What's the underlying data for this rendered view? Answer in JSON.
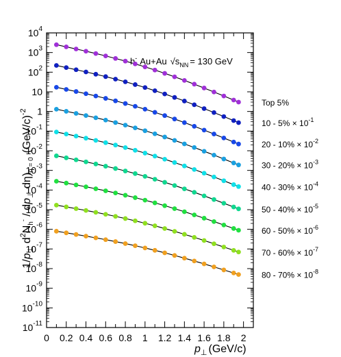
{
  "chart_data": {
    "type": "scatter",
    "annotation": {
      "particle": "h",
      "charge": "-",
      "system": "Au+Au",
      "energy_prefix": "√s",
      "energy_sub": "NN",
      "energy_value": "= 130 GeV"
    },
    "xlabel": {
      "main": "p",
      "sub": "⊥",
      "unit": "(GeV/c)"
    },
    "ylabel": {
      "p1": "1/",
      "p_main": "p",
      "p_sub": "⊥",
      "d2": " d",
      "d2_sup": "2",
      "N": "N",
      "N_sub": "h",
      "N_sup": "-",
      "mid": " / d",
      "dp_main": "p",
      "dp_sub": "⊥",
      "deta": " dη)",
      "eta_sub": "η = 0",
      "unit": "(GeV/c)",
      "unit_sup": "-2"
    },
    "xlim": [
      0,
      2.1
    ],
    "ylog": true,
    "ylim_exp": [
      -11,
      4
    ],
    "x_ticks": [
      "0",
      "0.2",
      "0.4",
      "0.6",
      "0.8",
      "1",
      "1.2",
      "1.4",
      "1.6",
      "1.8",
      "2"
    ],
    "y_ticks": [
      {
        "base": "10",
        "exp": "4"
      },
      {
        "base": "10",
        "exp": "3"
      },
      {
        "base": "10",
        "exp": "2"
      },
      {
        "base": "10",
        "exp": ""
      },
      {
        "base": "1",
        "exp": ""
      },
      {
        "base": "10",
        "exp": "-1"
      },
      {
        "base": "10",
        "exp": "-2"
      },
      {
        "base": "10",
        "exp": "-3"
      },
      {
        "base": "10",
        "exp": "-4"
      },
      {
        "base": "10",
        "exp": "-5"
      },
      {
        "base": "10",
        "exp": "-6"
      },
      {
        "base": "10",
        "exp": "-7"
      },
      {
        "base": "10",
        "exp": "-8"
      },
      {
        "base": "10",
        "exp": "-9"
      },
      {
        "base": "10",
        "exp": "-10"
      },
      {
        "base": "10",
        "exp": "-11"
      }
    ],
    "x": [
      0.1,
      0.2,
      0.3,
      0.4,
      0.5,
      0.6,
      0.7,
      0.8,
      0.9,
      1.0,
      1.1,
      1.2,
      1.3,
      1.4,
      1.5,
      1.6,
      1.7,
      1.8,
      1.9,
      1.95
    ],
    "series": [
      {
        "label": "Top 5%",
        "label_sup": "",
        "color": "#a030d8",
        "start": 2500,
        "end": 3
      },
      {
        "label": "10 - 5% × 10",
        "label_sup": "-1",
        "color": "#1020c0",
        "start": 220,
        "end": 0.27
      },
      {
        "label": "20 - 10% × 10",
        "label_sup": "-2",
        "color": "#1848e8",
        "start": 17,
        "end": 0.022
      },
      {
        "label": "30 - 20% × 10",
        "label_sup": "-3",
        "color": "#1aa0e0",
        "start": 1.3,
        "end": 0.0019
      },
      {
        "label": "40 - 30% × 10",
        "label_sup": "-4",
        "color": "#10e0e8",
        "start": 0.09,
        "end": 0.00015
      },
      {
        "label": "50 - 40% × 10",
        "label_sup": "-5",
        "color": "#10d890",
        "start": 0.0055,
        "end": 1.1e-05
      },
      {
        "label": "60 - 50% × 10",
        "label_sup": "-6",
        "color": "#20e040",
        "start": 0.00028,
        "end": 9e-07
      },
      {
        "label": "70 - 60% × 10",
        "label_sup": "-7",
        "color": "#90e020",
        "start": 1.7e-05,
        "end": 7e-08
      },
      {
        "label": "80 - 70% × 10",
        "label_sup": "-8",
        "color": "#f0a020",
        "start": 8e-07,
        "end": 5e-09
      }
    ]
  }
}
